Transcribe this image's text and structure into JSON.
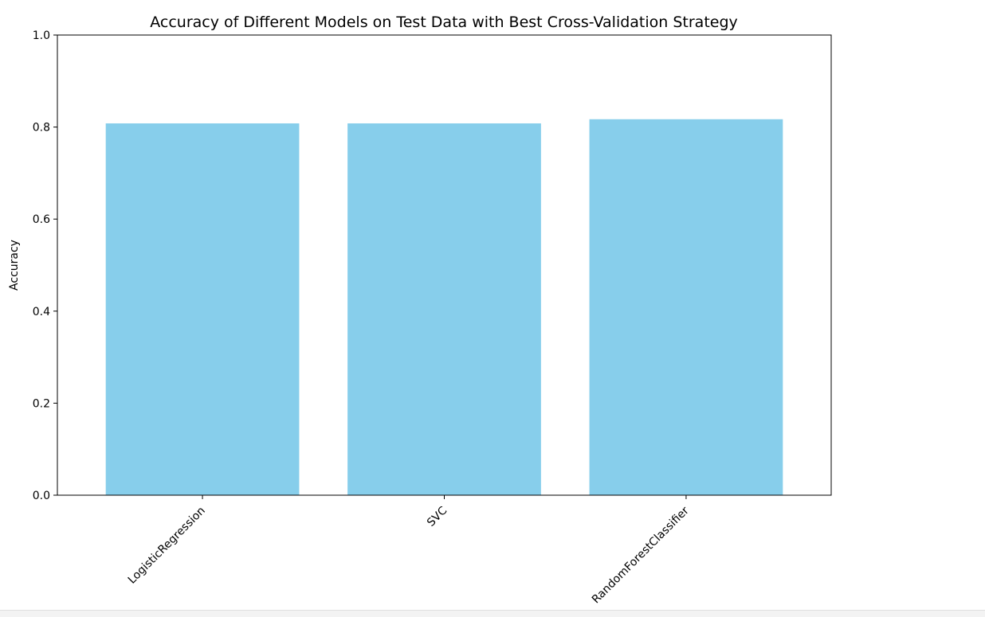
{
  "chart_data": {
    "type": "bar",
    "title": "Accuracy of Different Models on Test Data with Best Cross-Validation Strategy",
    "xlabel": "",
    "ylabel": "Accuracy",
    "categories": [
      "LogisticRegression",
      "SVC",
      "RandomForestClassifier"
    ],
    "values": [
      0.808,
      0.808,
      0.817
    ],
    "ylim": [
      0,
      1.0
    ],
    "yticks": [
      "0.0",
      "0.2",
      "0.4",
      "0.6",
      "0.8",
      "1.0"
    ],
    "bar_color": "#87ceeb",
    "grid": false,
    "xtick_rotation_deg": 45
  }
}
